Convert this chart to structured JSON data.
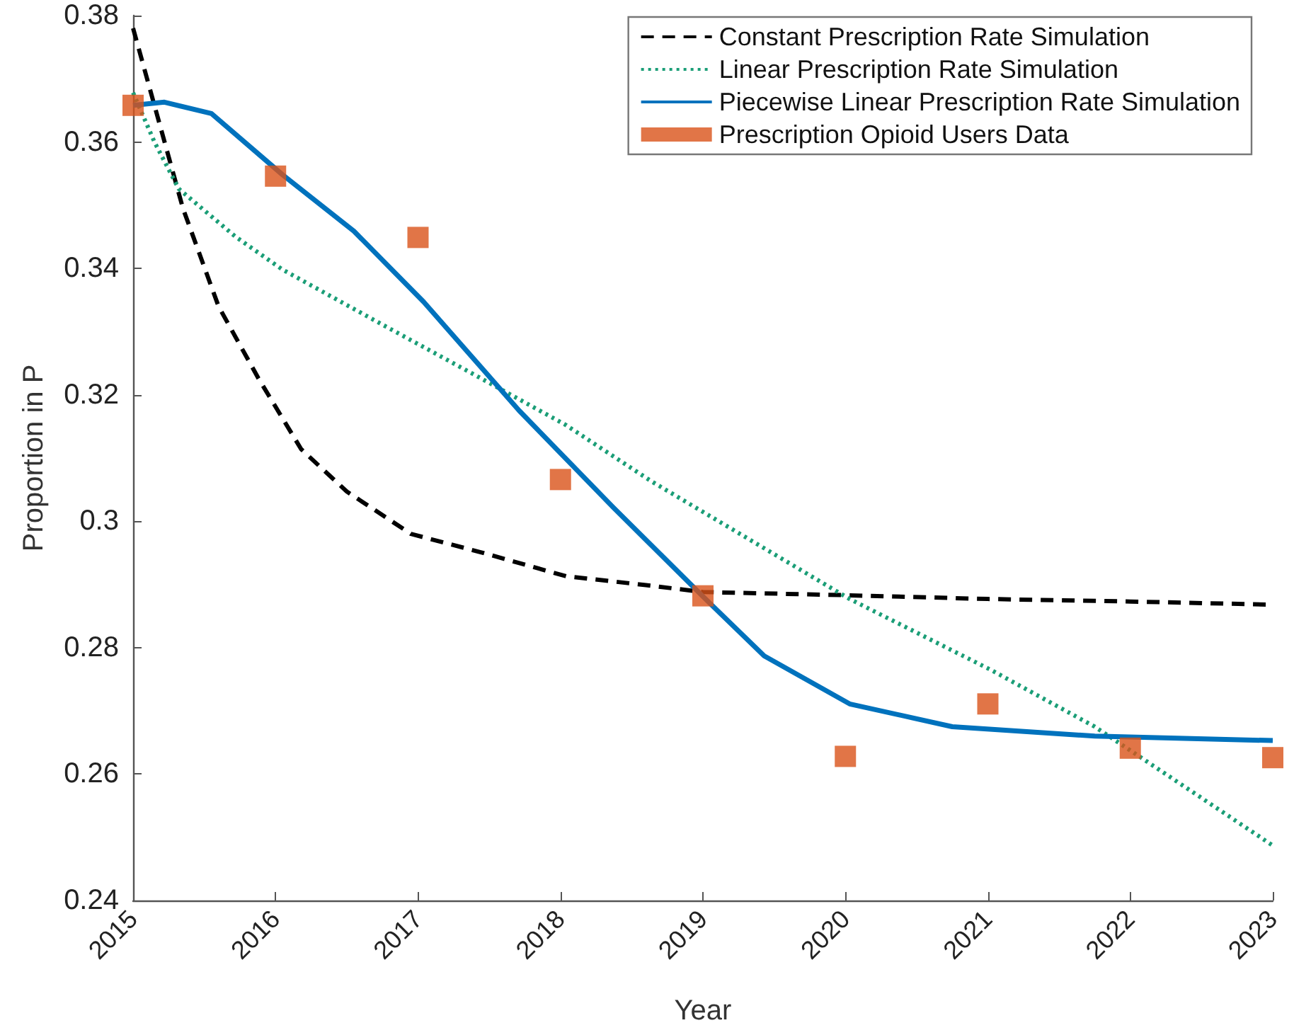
{
  "chart_data": {
    "type": "line",
    "xlabel": "Year",
    "ylabel": "Proportion in P",
    "xlim": [
      2015,
      2023
    ],
    "xticks": [
      2015,
      2016,
      2017,
      2018,
      2019,
      2020,
      2021,
      2022,
      2023
    ],
    "ylim": [
      0.24,
      0.38
    ],
    "yticks": [
      0.24,
      0.26,
      0.28,
      0.3,
      0.32,
      0.34,
      0.36,
      0.38
    ],
    "grid": false,
    "legend": "top right",
    "series": [
      {
        "name": "Constant Prescription Rate Simulation",
        "color": "#000000",
        "line_style": "dashed",
        "marker": "none",
        "x": [
          2015,
          2015.35,
          2015.6,
          2015.88,
          2016.18,
          2016.5,
          2016.95,
          2017.44,
          2018.04,
          2018.6,
          2019,
          2020,
          2021,
          2022,
          2023
        ],
        "values": [
          0.378,
          0.3495,
          0.334,
          0.3226,
          0.3114,
          0.3047,
          0.298,
          0.2951,
          0.2913,
          0.2899,
          0.2888,
          0.2883,
          0.2877,
          0.2873,
          0.2868
        ]
      },
      {
        "name": "Linear Prescription Rate Simulation",
        "color": "#1b9e77",
        "line_style": "dotted",
        "marker": "none",
        "x": [
          2015,
          2015.15,
          2015.32,
          2015.72,
          2016.05,
          2016.71,
          2017.37,
          2018.04,
          2018.64,
          2020.03,
          2021.02,
          2021.75,
          2023
        ],
        "values": [
          0.3678,
          0.36,
          0.3526,
          0.345,
          0.3398,
          0.3316,
          0.3235,
          0.3152,
          0.3063,
          0.2877,
          0.2765,
          0.2675,
          0.2487
        ]
      },
      {
        "name": "Piecewise Linear Prescription Rate Simulation",
        "color": "#0072bd",
        "line_style": "solid",
        "marker": "none",
        "x": [
          2015,
          2015.22,
          2015.55,
          2016.05,
          2016.55,
          2017.04,
          2017.71,
          2018.37,
          2019,
          2019.43,
          2020.03,
          2020.75,
          2021.75,
          2023
        ],
        "values": [
          0.3658,
          0.3663,
          0.3645,
          0.3548,
          0.3459,
          0.3347,
          0.3175,
          0.3022,
          0.2881,
          0.2787,
          0.2711,
          0.2675,
          0.266,
          0.2653
        ]
      },
      {
        "name": "Prescription Opioid Users Data",
        "type": "scatter",
        "color": "#d95319",
        "marker": "square",
        "x": [
          2015,
          2016,
          2017,
          2018,
          2019,
          2020,
          2021,
          2022,
          2023
        ],
        "values": [
          0.3658,
          0.3546,
          0.3449,
          0.3066,
          0.2882,
          0.2628,
          0.2711,
          0.2641,
          0.2626
        ]
      }
    ]
  }
}
